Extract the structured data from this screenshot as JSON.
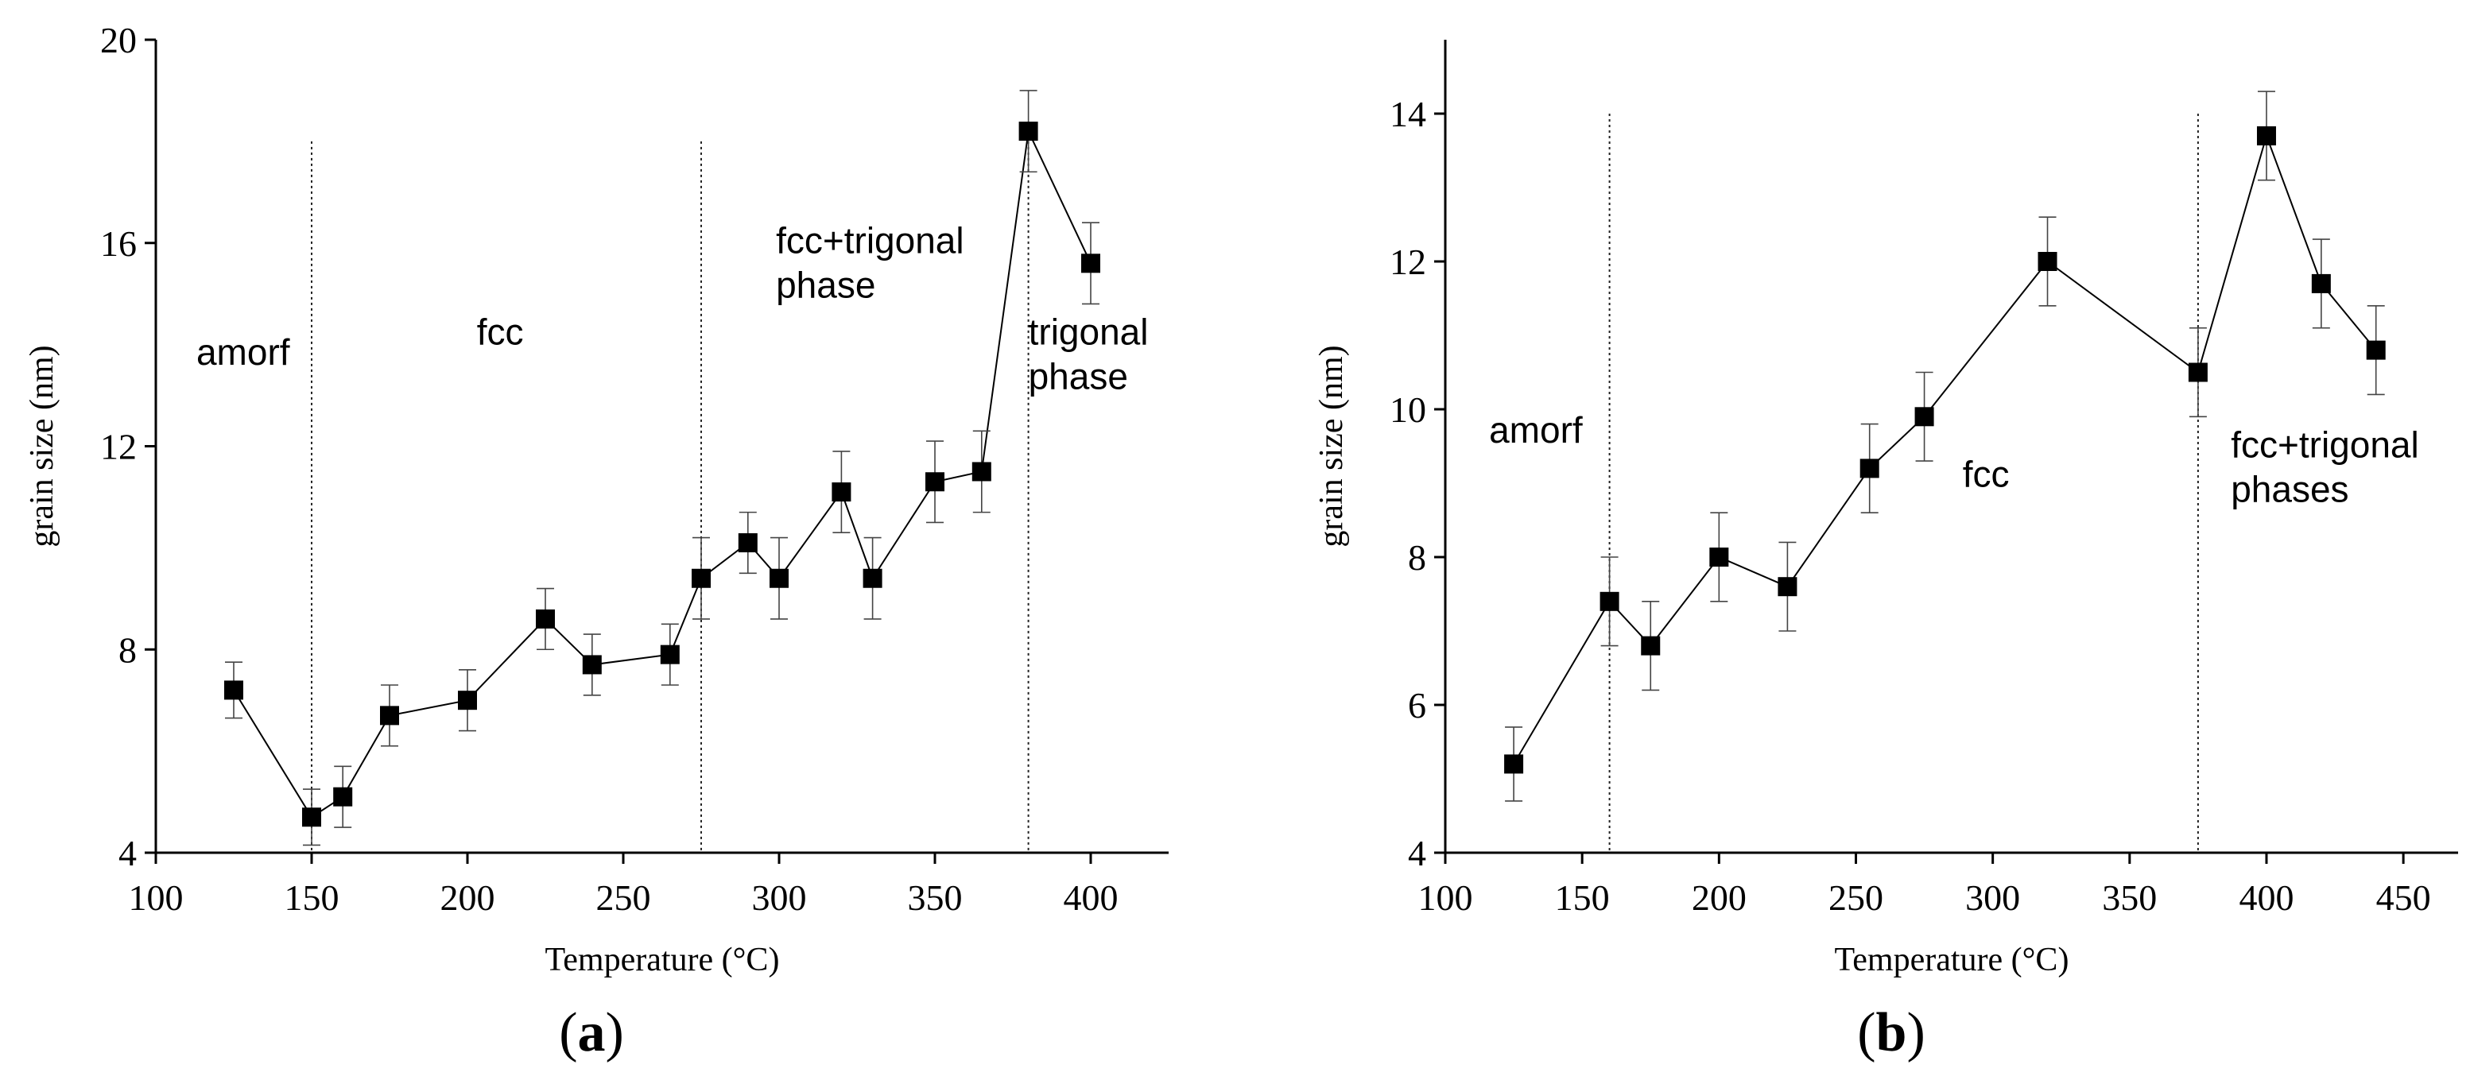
{
  "chart_data": [
    {
      "type": "line",
      "panel_label": "a",
      "title": "",
      "xlabel": "Temperature (°C)",
      "ylabel": "grain size (nm)",
      "xlim": [
        100,
        425
      ],
      "ylim": [
        4,
        20
      ],
      "xticks": [
        100,
        150,
        200,
        250,
        300,
        350,
        400
      ],
      "yticks": [
        4,
        8,
        12,
        16,
        20
      ],
      "grid": false,
      "series": [
        {
          "name": "grain size",
          "marker": "square",
          "x": [
            125,
            150,
            160,
            175,
            200,
            225,
            240,
            265,
            275,
            290,
            300,
            320,
            330,
            350,
            365,
            380,
            400
          ],
          "values": [
            7.2,
            4.7,
            5.1,
            6.7,
            7.0,
            8.6,
            7.7,
            7.9,
            9.4,
            10.1,
            9.4,
            11.1,
            9.4,
            11.3,
            11.5,
            18.2,
            15.6
          ],
          "errors": [
            0.55,
            0.55,
            0.6,
            0.6,
            0.6,
            0.6,
            0.6,
            0.6,
            0.8,
            0.6,
            0.8,
            0.8,
            0.8,
            0.8,
            0.8,
            0.8,
            0.8
          ]
        }
      ],
      "phase_boundaries": [
        150,
        275,
        380
      ],
      "boundary_top": 18,
      "annotations": [
        {
          "lines": [
            "amorf"
          ],
          "x": 113,
          "y": 13.6
        },
        {
          "lines": [
            "fcc"
          ],
          "x": 203,
          "y": 14.0
        },
        {
          "lines": [
            "fcc+trigonal",
            "phase"
          ],
          "x": 299,
          "y": 15.8
        },
        {
          "lines": [
            "trigonal",
            "phase"
          ],
          "x": 380,
          "y": 14.0
        }
      ]
    },
    {
      "type": "line",
      "panel_label": "b",
      "title": "",
      "xlabel": "Temperature (°C)",
      "ylabel": "grain size (nm)",
      "xlim": [
        100,
        470
      ],
      "ylim": [
        4,
        15
      ],
      "xticks": [
        100,
        150,
        200,
        250,
        300,
        350,
        400,
        450
      ],
      "yticks": [
        4,
        6,
        8,
        10,
        12,
        14
      ],
      "grid": false,
      "series": [
        {
          "name": "grain size",
          "marker": "square",
          "x": [
            125,
            160,
            175,
            200,
            225,
            255,
            275,
            320,
            375,
            400,
            420,
            440
          ],
          "values": [
            5.2,
            7.4,
            6.8,
            8.0,
            7.6,
            9.2,
            9.9,
            12.0,
            10.5,
            13.7,
            11.7,
            10.8
          ],
          "errors": [
            0.5,
            0.6,
            0.6,
            0.6,
            0.6,
            0.6,
            0.6,
            0.6,
            0.6,
            0.6,
            0.6,
            0.6
          ]
        }
      ],
      "phase_boundaries": [
        160,
        375
      ],
      "boundary_top": 14,
      "annotations": [
        {
          "lines": [
            "amorf"
          ],
          "x": 116,
          "y": 9.55
        },
        {
          "lines": [
            "fcc"
          ],
          "x": 289,
          "y": 8.95
        },
        {
          "lines": [
            "fcc+trigonal",
            "phases"
          ],
          "x": 387,
          "y": 9.35
        }
      ]
    }
  ]
}
